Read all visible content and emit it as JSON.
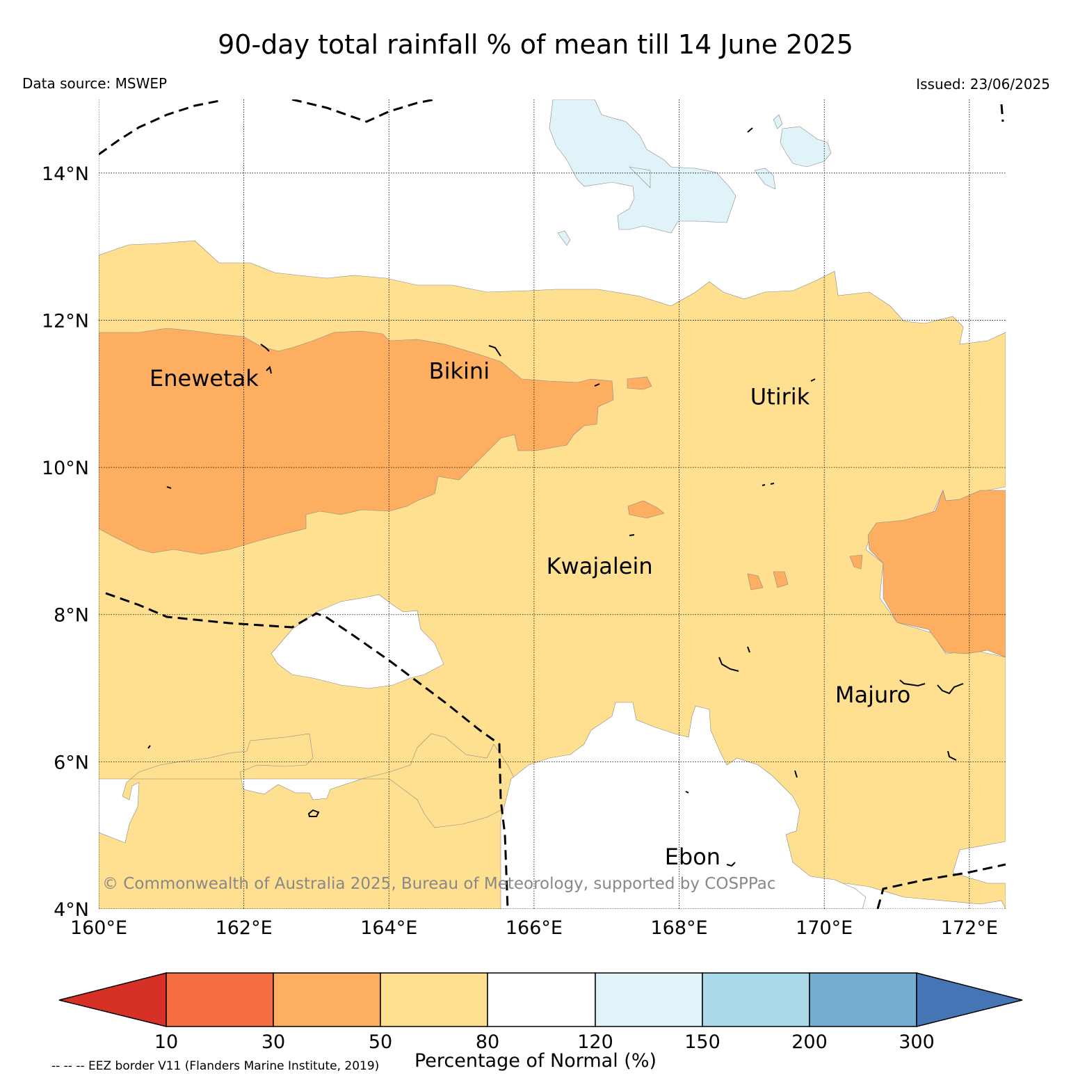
{
  "title": "90-day total rainfall % of mean till 14 June 2025",
  "data_source": "Data source: MSWEP",
  "issued": "Issued: 23/06/2025",
  "copyright": "© Commonwealth of Australia 2025, Bureau of Meteorology, supported by COSPPac",
  "eez_note": "-- -- -- EEZ border V11 (Flanders Marine Institute, 2019)",
  "map": {
    "lon_range": [
      160,
      172.5
    ],
    "lat_range": [
      4,
      15
    ],
    "lon_ticks": [
      {
        "value": 160,
        "label": "160°E"
      },
      {
        "value": 162,
        "label": "162°E"
      },
      {
        "value": 164,
        "label": "164°E"
      },
      {
        "value": 166,
        "label": "166°E"
      },
      {
        "value": 168,
        "label": "168°E"
      },
      {
        "value": 170,
        "label": "170°E"
      },
      {
        "value": 172,
        "label": "172°E"
      }
    ],
    "lat_ticks": [
      {
        "value": 4,
        "label": "4°N"
      },
      {
        "value": 6,
        "label": "6°N"
      },
      {
        "value": 8,
        "label": "8°N"
      },
      {
        "value": 10,
        "label": "10°N"
      },
      {
        "value": 12,
        "label": "12°N"
      },
      {
        "value": 14,
        "label": "14°N"
      }
    ],
    "places": [
      {
        "name": "Enewetak",
        "lon": 160.7,
        "lat": 11.2
      },
      {
        "name": "Bikini",
        "lon": 164.55,
        "lat": 11.3
      },
      {
        "name": "Utirik",
        "lon": 168.98,
        "lat": 10.95
      },
      {
        "name": "Kwajalein",
        "lon": 166.17,
        "lat": 8.65
      },
      {
        "name": "Majuro",
        "lon": 170.15,
        "lat": 6.9
      },
      {
        "name": "Ebon",
        "lon": 167.8,
        "lat": 4.7
      }
    ],
    "grid": true
  },
  "colorbar": {
    "label": "Percentage of Normal (%)",
    "ticks": [
      "10",
      "30",
      "50",
      "80",
      "120",
      "150",
      "200",
      "300"
    ],
    "colors": {
      "below_10": "#d73027",
      "10_30": "#f46d43",
      "30_50": "#fdae61",
      "50_80": "#fee090",
      "80_120": "#ffffff",
      "120_150": "#e0f3f8",
      "150_200": "#abd9e9",
      "200_300": "#74add1",
      "above_300": "#4575b4"
    }
  }
}
